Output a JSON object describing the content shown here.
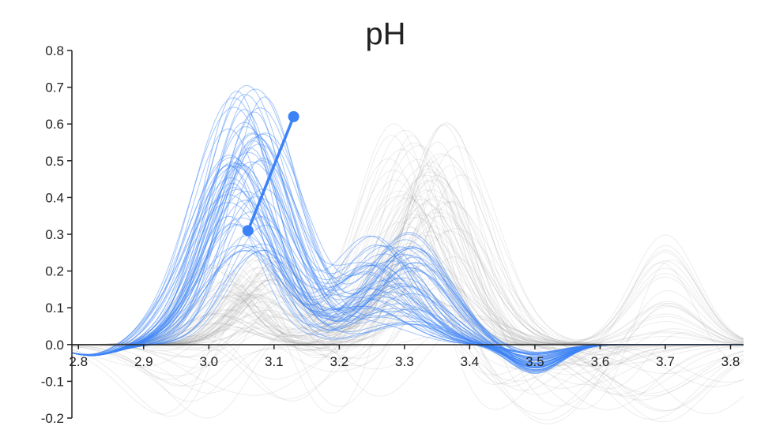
{
  "chart_data": {
    "type": "line",
    "title": "pH",
    "xlabel": "",
    "ylabel": "",
    "xlim": [
      2.79,
      3.82
    ],
    "ylim": [
      -0.2,
      0.8
    ],
    "x_ticks": [
      "2.8",
      "2.9",
      "3.0",
      "3.1",
      "3.2",
      "3.3",
      "3.4",
      "3.5",
      "3.6",
      "3.7",
      "3.8"
    ],
    "y_ticks": [
      "0.8",
      "0.7",
      "0.6",
      "0.5",
      "0.4",
      "0.3",
      "0.2",
      "0.1",
      "0.0",
      "-0.1",
      "-0.2"
    ],
    "grid": false,
    "legend": "none",
    "colors": {
      "highlight": "#3b82f6",
      "background": "#9a9a9a",
      "axis": "#222222"
    },
    "highlight_ensemble": {
      "count": 60,
      "peak_x_range": [
        3.03,
        3.09
      ],
      "peak_y_range": [
        0.25,
        0.71
      ],
      "secondary_peak_x": 3.28,
      "secondary_peak_y_range": [
        0.05,
        0.31
      ]
    },
    "background_ensemble": {
      "count": 90,
      "peak_x_range": [
        3.28,
        3.38
      ],
      "peak_y_range": [
        0.1,
        0.61
      ]
    },
    "annotation_segment": {
      "start": {
        "x": 3.06,
        "y": 0.31
      },
      "end": {
        "x": 3.13,
        "y": 0.62
      }
    }
  }
}
